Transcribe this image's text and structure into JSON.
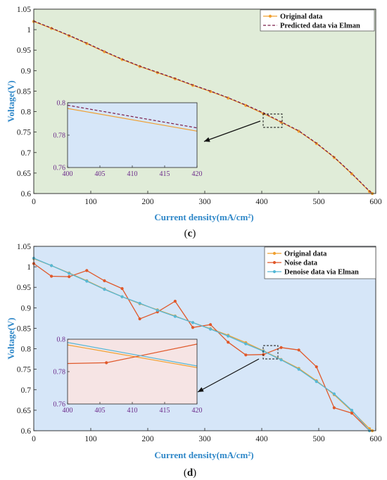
{
  "chart_data": [
    {
      "type": "line",
      "panel": "c",
      "xlabel": "Current density(mA/cm²)",
      "ylabel": "Voltage(V)",
      "xlim": [
        0,
        600
      ],
      "ylim": [
        0.6,
        1.05
      ],
      "xticks": [
        "0",
        "100",
        "200",
        "300",
        "400",
        "500",
        "600"
      ],
      "yticks": [
        "0.6",
        "0.65",
        "0.7",
        "0.75",
        "0.8",
        "0.85",
        "0.9",
        "0.95",
        "1",
        "1.05"
      ],
      "legend_position": "top-right",
      "background": "#e0ecd8",
      "series": [
        {
          "name": "Original data",
          "color": "#f0a030",
          "style": "solid-with-markers",
          "x": [
            0,
            31,
            62,
            93,
            124,
            155,
            186,
            217,
            248,
            279,
            310,
            341,
            372,
            403,
            434,
            465,
            496,
            527,
            558,
            589,
            594
          ],
          "y": [
            1.02,
            1.003,
            0.985,
            0.966,
            0.946,
            0.927,
            0.91,
            0.895,
            0.88,
            0.864,
            0.849,
            0.833,
            0.815,
            0.795,
            0.774,
            0.752,
            0.722,
            0.688,
            0.648,
            0.605,
            0.6
          ]
        },
        {
          "name": "Predicted data via Elman",
          "color": "#7a1c4a",
          "style": "dashed",
          "x": [
            0,
            31,
            62,
            93,
            124,
            155,
            186,
            217,
            248,
            279,
            310,
            341,
            372,
            403,
            434,
            465,
            496,
            527,
            558,
            589,
            594
          ],
          "y": [
            1.021,
            1.004,
            0.986,
            0.967,
            0.947,
            0.928,
            0.911,
            0.896,
            0.881,
            0.865,
            0.85,
            0.834,
            0.816,
            0.797,
            0.775,
            0.753,
            0.723,
            0.689,
            0.649,
            0.606,
            0.601
          ]
        }
      ],
      "inset": {
        "xlim": [
          400,
          420
        ],
        "ylim": [
          0.76,
          0.8
        ],
        "xticks": [
          "400",
          "405",
          "410",
          "415",
          "420"
        ],
        "yticks": [
          "0.76",
          "0.78",
          "0.8"
        ],
        "background": "#d6e6f8",
        "series": [
          {
            "name": "Original data",
            "x": [
              400,
              420
            ],
            "y": [
              0.7965,
              0.7825
            ]
          },
          {
            "name": "Predicted data via Elman",
            "x": [
              400,
              420
            ],
            "y": [
              0.7985,
              0.7845
            ]
          }
        ]
      }
    },
    {
      "type": "line",
      "panel": "d",
      "xlabel": "Current density(mA/cm²)",
      "ylabel": "Voltage(V)",
      "xlim": [
        0,
        600
      ],
      "ylim": [
        0.6,
        1.05
      ],
      "xticks": [
        "0",
        "100",
        "200",
        "300",
        "400",
        "500",
        "600"
      ],
      "yticks": [
        "0.6",
        "0.65",
        "0.7",
        "0.75",
        "0.8",
        "0.85",
        "0.9",
        "0.95",
        "1",
        "1.05"
      ],
      "legend_position": "top-right",
      "background": "#d6e6f8",
      "series": [
        {
          "name": "Original data",
          "color": "#f0a030",
          "style": "solid-with-markers",
          "x": [
            0,
            31,
            62,
            93,
            124,
            155,
            186,
            217,
            248,
            279,
            310,
            341,
            372,
            403,
            434,
            465,
            496,
            527,
            558,
            589,
            594
          ],
          "y": [
            1.02,
            1.003,
            0.985,
            0.966,
            0.946,
            0.927,
            0.91,
            0.895,
            0.88,
            0.864,
            0.849,
            0.833,
            0.815,
            0.795,
            0.774,
            0.752,
            0.722,
            0.688,
            0.648,
            0.605,
            0.6
          ]
        },
        {
          "name": "Noise data",
          "color": "#e0582a",
          "style": "solid-with-markers",
          "x": [
            0,
            31,
            62,
            93,
            124,
            155,
            186,
            217,
            248,
            279,
            310,
            341,
            372,
            403,
            434,
            465,
            496,
            527,
            558,
            589
          ],
          "y": [
            1.008,
            0.977,
            0.976,
            0.991,
            0.966,
            0.947,
            0.873,
            0.89,
            0.916,
            0.852,
            0.859,
            0.816,
            0.785,
            0.786,
            0.803,
            0.797,
            0.756,
            0.656,
            0.643,
            0.6
          ]
        },
        {
          "name": "Denoise data via Elman",
          "color": "#55b8d6",
          "style": "solid-with-markers",
          "x": [
            0,
            31,
            62,
            93,
            124,
            155,
            186,
            217,
            248,
            279,
            310,
            341,
            372,
            403,
            434,
            465,
            496,
            527,
            558,
            589
          ],
          "y": [
            1.021,
            1.003,
            0.984,
            0.965,
            0.945,
            0.927,
            0.911,
            0.894,
            0.879,
            0.864,
            0.848,
            0.831,
            0.812,
            0.794,
            0.773,
            0.75,
            0.72,
            0.69,
            0.65,
            0.6
          ]
        }
      ],
      "inset": {
        "xlim": [
          400,
          420
        ],
        "ylim": [
          0.76,
          0.8
        ],
        "xticks": [
          "400",
          "405",
          "410",
          "415",
          "420"
        ],
        "yticks": [
          "0.76",
          "0.78",
          "0.8"
        ],
        "background": "#f6e4e4",
        "series": [
          {
            "name": "Original data",
            "x": [
              400,
              420
            ],
            "y": [
              0.7965,
              0.7825
            ]
          },
          {
            "name": "Noise data",
            "x": [
              400,
              406,
              420
            ],
            "y": [
              0.785,
              0.7855,
              0.797
            ]
          },
          {
            "name": "Denoise data via Elman",
            "x": [
              400,
              420
            ],
            "y": [
              0.798,
              0.7835
            ]
          }
        ]
      }
    }
  ],
  "panel_labels": {
    "c": {
      "open": "(",
      "letter": "c",
      "close": ")"
    },
    "d": {
      "open": "(",
      "letter": "d",
      "close": ")"
    }
  }
}
